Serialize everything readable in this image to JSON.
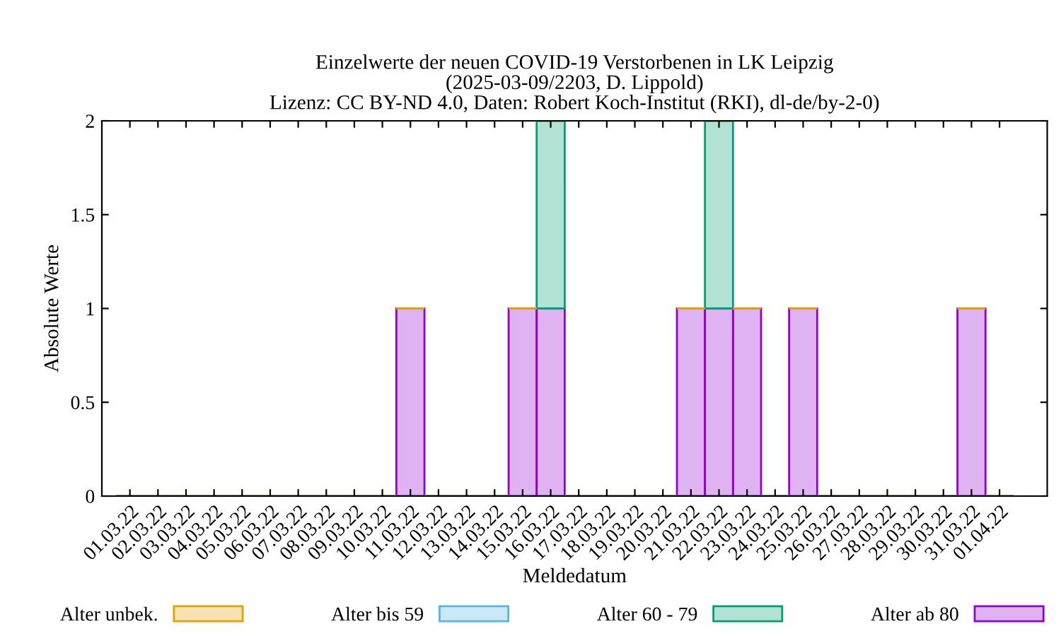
{
  "chart_data": {
    "type": "bar",
    "stacked": true,
    "title": "Einzelwerte der neuen COVID-19 Verstorbenen in LK Leipzig\n(2025-03-09/2203, D. Lippold)\nLizenz: CC BY-ND 4.0, Daten: Robert Koch-Institut (RKI), dl-de/by-2-0)",
    "xlabel": "Meldedatum",
    "ylabel": "Absolute Werte",
    "categories": [
      "01.03.22",
      "02.03.22",
      "03.03.22",
      "04.03.22",
      "05.03.22",
      "06.03.22",
      "07.03.22",
      "08.03.22",
      "09.03.22",
      "10.03.22",
      "11.03.22",
      "12.03.22",
      "13.03.22",
      "14.03.22",
      "15.03.22",
      "16.03.22",
      "17.03.22",
      "18.03.22",
      "19.03.22",
      "20.03.22",
      "21.03.22",
      "22.03.22",
      "23.03.22",
      "24.03.22",
      "25.03.22",
      "26.03.22",
      "27.03.22",
      "28.03.22",
      "29.03.22",
      "30.03.22",
      "31.03.22",
      "01.04.22"
    ],
    "series": [
      {
        "name": "Alter ab 80",
        "color": "#9400d3",
        "values": [
          0,
          0,
          0,
          0,
          0,
          0,
          0,
          0,
          0,
          0,
          1,
          0,
          0,
          0,
          1,
          1,
          0,
          0,
          0,
          0,
          1,
          1,
          1,
          0,
          1,
          0,
          0,
          0,
          0,
          0,
          1,
          0
        ]
      },
      {
        "name": "Alter 60 - 79",
        "color": "#009e73",
        "values": [
          0,
          0,
          0,
          0,
          0,
          0,
          0,
          0,
          0,
          0,
          0,
          0,
          0,
          0,
          0,
          1,
          0,
          0,
          0,
          0,
          0,
          1,
          0,
          0,
          0,
          0,
          0,
          0,
          0,
          0,
          0,
          0
        ]
      },
      {
        "name": "Alter bis 59",
        "color": "#56b4e9",
        "values": [
          0,
          0,
          0,
          0,
          0,
          0,
          0,
          0,
          0,
          0,
          0,
          0,
          0,
          0,
          0,
          0,
          0,
          0,
          0,
          0,
          0,
          0,
          0,
          0,
          0,
          0,
          0,
          0,
          0,
          0,
          0,
          0
        ]
      },
      {
        "name": "Alter unbek.",
        "color": "#e69f00",
        "values": [
          0,
          0,
          0,
          0,
          0,
          0,
          0,
          0,
          0,
          0,
          0,
          0,
          0,
          0,
          0,
          0,
          0,
          0,
          0,
          0,
          0,
          0,
          0,
          0,
          0,
          0,
          0,
          0,
          0,
          0,
          0,
          0
        ]
      }
    ],
    "ylim": [
      0,
      2
    ],
    "yticks": [
      0,
      0.5,
      1,
      1.5,
      2
    ],
    "grid": false,
    "legend": "bottom"
  }
}
